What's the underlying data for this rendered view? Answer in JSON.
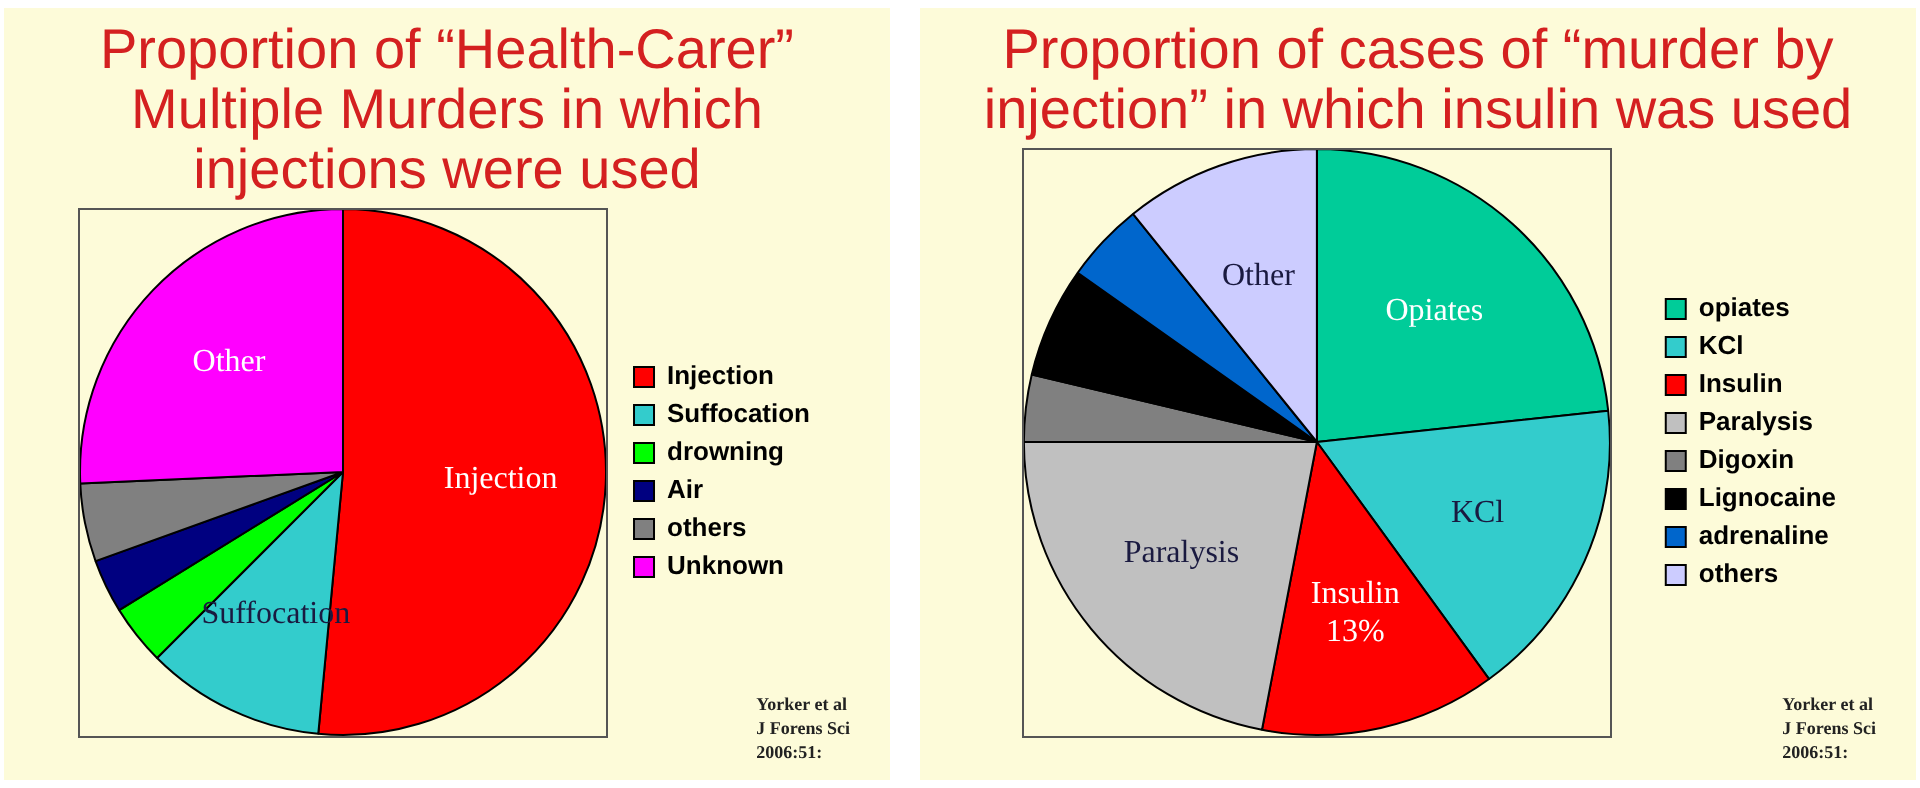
{
  "chart_data": [
    {
      "type": "pie",
      "title": "Proportion of “Health-Carer” Multiple Murders in which injections were used",
      "categories": [
        "Injection",
        "Suffocation",
        "drowning",
        "Air",
        "others",
        "Unknown"
      ],
      "values": [
        51.5,
        11,
        3.7,
        3.3,
        4.8,
        25.7
      ],
      "colors": [
        "#ff0000",
        "#33cccc",
        "#00ff00",
        "#000080",
        "#808080",
        "#ff00ff"
      ],
      "value_labels": [
        "Injection",
        "Suffocation",
        null,
        null,
        null,
        "Other"
      ],
      "legend": "right",
      "annotations": [
        "Yorker et al\nJ Forens Sci\n2006:51:"
      ]
    },
    {
      "type": "pie",
      "title": "Proportion of cases  of “murder by injection” in which insulin was used",
      "categories": [
        "opiates",
        "KCl",
        "Insulin",
        "Paralysis",
        "Digoxin",
        "Lignocaine",
        "adrenaline",
        "others"
      ],
      "values": [
        23.3,
        16.7,
        13,
        22,
        3.7,
        6.1,
        4.4,
        10.8
      ],
      "colors": [
        "#00cc99",
        "#33cccc",
        "#ff0000",
        "#c0c0c0",
        "#808080",
        "#000000",
        "#0066cc",
        "#ccccff"
      ],
      "value_labels": [
        "Opiates",
        "KCl",
        "Insulin\n13%",
        "Paralysis",
        null,
        null,
        null,
        "Other"
      ],
      "legend": "right",
      "annotations": [
        "Yorker et al\nJ Forens Sci\n2006:51:"
      ]
    }
  ]
}
